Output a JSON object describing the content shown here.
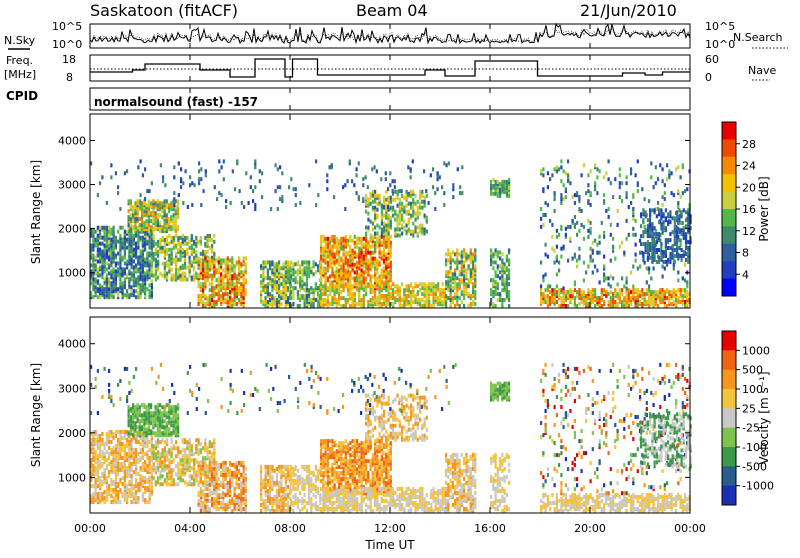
{
  "header": {
    "station": "Saskatoon (fitACF)",
    "beam": "Beam 04",
    "date": "21/Jun/2010"
  },
  "top_panels": {
    "nsky_label": "N.Sky",
    "nsky_ticks": [
      "10^5",
      "10^0"
    ],
    "nsearch_label": "N.Search",
    "nsearch_ticks": [
      "10^5",
      "10^0"
    ],
    "freq_label_1": "Freq.",
    "freq_label_2": "[MHz]",
    "freq_ticks": [
      "18",
      "8"
    ],
    "nave_label": "Nave",
    "nave_ticks": [
      "60",
      "0"
    ],
    "cpid_label": "CPID",
    "cpid_value": "normalsound (fast) -157"
  },
  "chart_data": [
    {
      "type": "heatmap",
      "name": "power",
      "ylabel": "Slant Range [km]",
      "yticks": [
        "4000",
        "3000",
        "2000",
        "1000"
      ],
      "ylim": [
        200,
        4600
      ],
      "xlim": [
        0,
        24
      ],
      "colorbar_label": "Power [dB]",
      "colorbar_ticks": [
        "28",
        "24",
        "20",
        "16",
        "12",
        "8",
        "4"
      ],
      "colors": [
        "#0000ff",
        "#1f3fbf",
        "#2e5e9e",
        "#3d8b6a",
        "#52b848",
        "#c8d040",
        "#f5c000",
        "#f58a00",
        "#f04a00",
        "#e80000"
      ]
    },
    {
      "type": "heatmap",
      "name": "velocity",
      "ylabel": "Slant Range [km]",
      "yticks": [
        "4000",
        "3000",
        "2000",
        "1000"
      ],
      "ylim": [
        200,
        4600
      ],
      "xlim": [
        0,
        24
      ],
      "xlabel": "Time UT",
      "xticks": [
        "00:00",
        "04:00",
        "08:00",
        "12:00",
        "16:00",
        "20:00",
        "00:00"
      ],
      "colorbar_label": "Velocity [m s⁻¹]",
      "colorbar_ticks": [
        "1000",
        "500",
        "100",
        "25",
        "-25",
        "-100",
        "-500",
        "-1000"
      ],
      "colors": [
        "#1b2fb5",
        "#2a5c8c",
        "#3d9a4a",
        "#7ec44a",
        "#c8c8c8",
        "#f5c23c",
        "#f5961e",
        "#f06414",
        "#e80000"
      ]
    }
  ]
}
